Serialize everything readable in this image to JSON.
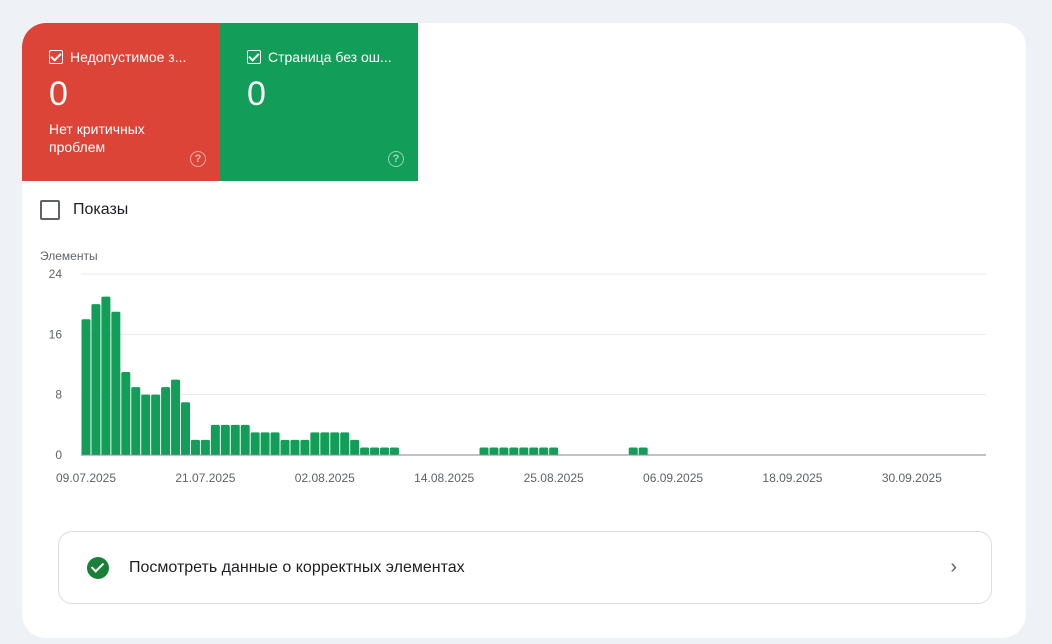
{
  "tiles": [
    {
      "label": "Недопустимое з...",
      "value": "0",
      "subtitle": "Нет критичных проблем",
      "color": "#db4437"
    },
    {
      "label": "Страница без ош...",
      "value": "0",
      "subtitle": "",
      "color": "#129d58"
    }
  ],
  "impressions_label": "Показы",
  "link_label": "Посмотреть данные о корректных элементах",
  "chart_data": {
    "type": "bar",
    "ylabel": "Элементы",
    "ylim": [
      0,
      24
    ],
    "yticks": [
      "0",
      "8",
      "16",
      "24"
    ],
    "xticks": [
      "09.07.2025",
      "21.07.2025",
      "02.08.2025",
      "14.08.2025",
      "25.08.2025",
      "06.09.2025",
      "18.09.2025",
      "30.09.2025"
    ],
    "xlim": [
      "09.07.2025",
      "07.10.2025"
    ],
    "color": "#129d58",
    "grid": true,
    "dates": [
      "09.07.2025",
      "10.07.2025",
      "11.07.2025",
      "12.07.2025",
      "13.07.2025",
      "14.07.2025",
      "15.07.2025",
      "16.07.2025",
      "17.07.2025",
      "18.07.2025",
      "19.07.2025",
      "20.07.2025",
      "21.07.2025",
      "22.07.2025",
      "23.07.2025",
      "24.07.2025",
      "25.07.2025",
      "26.07.2025",
      "27.07.2025",
      "28.07.2025",
      "29.07.2025",
      "30.07.2025",
      "31.07.2025",
      "01.08.2025",
      "02.08.2025",
      "03.08.2025",
      "04.08.2025",
      "05.08.2025",
      "06.08.2025",
      "07.08.2025",
      "08.08.2025",
      "09.08.2025",
      "18.08.2025",
      "19.08.2025",
      "20.08.2025",
      "21.08.2025",
      "22.08.2025",
      "23.08.2025",
      "24.08.2025",
      "25.08.2025",
      "02.09.2025",
      "03.09.2025"
    ],
    "values": [
      18,
      20,
      21,
      19,
      11,
      9,
      8,
      8,
      9,
      10,
      7,
      2,
      2,
      4,
      4,
      4,
      4,
      3,
      3,
      3,
      2,
      2,
      2,
      3,
      3,
      3,
      3,
      2,
      1,
      1,
      1,
      1,
      1,
      1,
      1,
      1,
      1,
      1,
      1,
      1,
      1,
      1
    ]
  }
}
